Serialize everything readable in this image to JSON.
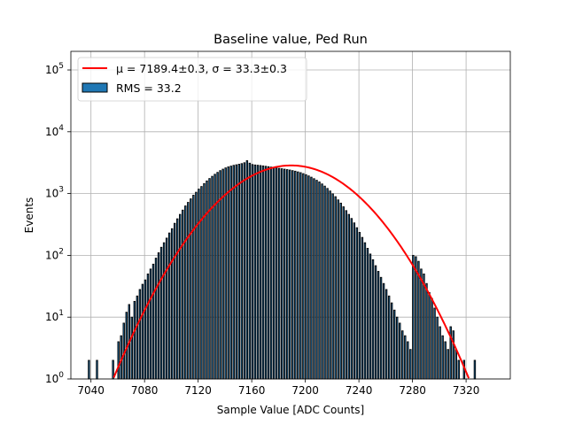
{
  "chart_data": {
    "type": "bar",
    "title": "Baseline value, Ped Run",
    "xlabel": "Sample Value [ADC Counts]",
    "ylabel": "Events",
    "xlim": [
      7025,
      7353
    ],
    "ylim": [
      1,
      200000
    ],
    "yscale": "log",
    "grid": true,
    "x_ticks": [
      7040,
      7080,
      7120,
      7160,
      7200,
      7240,
      7280,
      7320
    ],
    "y_ticks": [
      {
        "value": 1,
        "base": "10",
        "exp": "0"
      },
      {
        "value": 10,
        "base": "10",
        "exp": "1"
      },
      {
        "value": 100,
        "base": "10",
        "exp": "2"
      },
      {
        "value": 1000,
        "base": "10",
        "exp": "3"
      },
      {
        "value": 10000,
        "base": "10",
        "exp": "4"
      },
      {
        "value": 100000,
        "base": "10",
        "exp": "5"
      }
    ],
    "legend_position": "upper-left",
    "series": [
      {
        "type": "line",
        "label": "μ = 7189.4±0.3, σ = 33.3±0.3",
        "color": "#ff0000",
        "mean": 7189.4,
        "sigma": 33.3,
        "amplitude": 2850
      },
      {
        "type": "histogram",
        "label": "RMS = 33.2",
        "face_color": "#1f77b4",
        "edge_color": "#000000",
        "bin_width": 1,
        "bins": [
          [
            7038,
            2
          ],
          [
            7044,
            2
          ],
          [
            7056,
            2
          ],
          [
            7060,
            4
          ],
          [
            7062,
            5
          ],
          [
            7064,
            8
          ],
          [
            7066,
            12
          ],
          [
            7068,
            16
          ],
          [
            7070,
            10
          ],
          [
            7072,
            18
          ],
          [
            7074,
            22
          ],
          [
            7076,
            28
          ],
          [
            7078,
            34
          ],
          [
            7080,
            40
          ],
          [
            7082,
            50
          ],
          [
            7084,
            60
          ],
          [
            7086,
            72
          ],
          [
            7088,
            90
          ],
          [
            7090,
            110
          ],
          [
            7092,
            135
          ],
          [
            7094,
            160
          ],
          [
            7096,
            190
          ],
          [
            7098,
            230
          ],
          [
            7100,
            270
          ],
          [
            7102,
            330
          ],
          [
            7104,
            390
          ],
          [
            7106,
            460
          ],
          [
            7108,
            540
          ],
          [
            7110,
            630
          ],
          [
            7112,
            720
          ],
          [
            7114,
            820
          ],
          [
            7116,
            940
          ],
          [
            7118,
            1050
          ],
          [
            7120,
            1180
          ],
          [
            7122,
            1300
          ],
          [
            7124,
            1450
          ],
          [
            7126,
            1600
          ],
          [
            7128,
            1750
          ],
          [
            7130,
            1900
          ],
          [
            7132,
            2050
          ],
          [
            7134,
            2200
          ],
          [
            7136,
            2350
          ],
          [
            7138,
            2480
          ],
          [
            7140,
            2600
          ],
          [
            7142,
            2700
          ],
          [
            7144,
            2780
          ],
          [
            7146,
            2860
          ],
          [
            7148,
            2920
          ],
          [
            7150,
            2980
          ],
          [
            7152,
            3050
          ],
          [
            7154,
            3150
          ],
          [
            7156,
            3400
          ],
          [
            7158,
            3100
          ],
          [
            7160,
            2950
          ],
          [
            7162,
            2900
          ],
          [
            7164,
            2870
          ],
          [
            7166,
            2840
          ],
          [
            7168,
            2800
          ],
          [
            7170,
            2760
          ],
          [
            7172,
            2720
          ],
          [
            7174,
            2680
          ],
          [
            7176,
            2640
          ],
          [
            7178,
            2600
          ],
          [
            7180,
            2560
          ],
          [
            7182,
            2520
          ],
          [
            7184,
            2480
          ],
          [
            7186,
            2440
          ],
          [
            7188,
            2400
          ],
          [
            7190,
            2350
          ],
          [
            7192,
            2300
          ],
          [
            7194,
            2240
          ],
          [
            7196,
            2180
          ],
          [
            7198,
            2100
          ],
          [
            7200,
            2020
          ],
          [
            7202,
            1930
          ],
          [
            7204,
            1840
          ],
          [
            7206,
            1740
          ],
          [
            7208,
            1640
          ],
          [
            7210,
            1540
          ],
          [
            7212,
            1430
          ],
          [
            7214,
            1320
          ],
          [
            7216,
            1210
          ],
          [
            7218,
            1100
          ],
          [
            7220,
            990
          ],
          [
            7222,
            890
          ],
          [
            7224,
            790
          ],
          [
            7226,
            700
          ],
          [
            7228,
            610
          ],
          [
            7230,
            530
          ],
          [
            7232,
            460
          ],
          [
            7234,
            395
          ],
          [
            7236,
            335
          ],
          [
            7238,
            280
          ],
          [
            7240,
            235
          ],
          [
            7242,
            195
          ],
          [
            7244,
            160
          ],
          [
            7246,
            130
          ],
          [
            7248,
            105
          ],
          [
            7250,
            85
          ],
          [
            7252,
            68
          ],
          [
            7254,
            55
          ],
          [
            7256,
            44
          ],
          [
            7258,
            35
          ],
          [
            7260,
            28
          ],
          [
            7262,
            22
          ],
          [
            7264,
            17
          ],
          [
            7266,
            13
          ],
          [
            7268,
            10
          ],
          [
            7270,
            8
          ],
          [
            7272,
            6
          ],
          [
            7274,
            5
          ],
          [
            7276,
            4
          ],
          [
            7278,
            3
          ],
          [
            7280,
            100
          ],
          [
            7282,
            95
          ],
          [
            7284,
            80
          ],
          [
            7286,
            60
          ],
          [
            7288,
            50
          ],
          [
            7290,
            35
          ],
          [
            7292,
            25
          ],
          [
            7294,
            20
          ],
          [
            7296,
            14
          ],
          [
            7298,
            10
          ],
          [
            7300,
            7
          ],
          [
            7302,
            5
          ],
          [
            7304,
            4
          ],
          [
            7306,
            3
          ],
          [
            7308,
            7
          ],
          [
            7310,
            6
          ],
          [
            7312,
            3
          ],
          [
            7314,
            2
          ],
          [
            7318,
            2
          ],
          [
            7326,
            2
          ]
        ]
      }
    ]
  }
}
